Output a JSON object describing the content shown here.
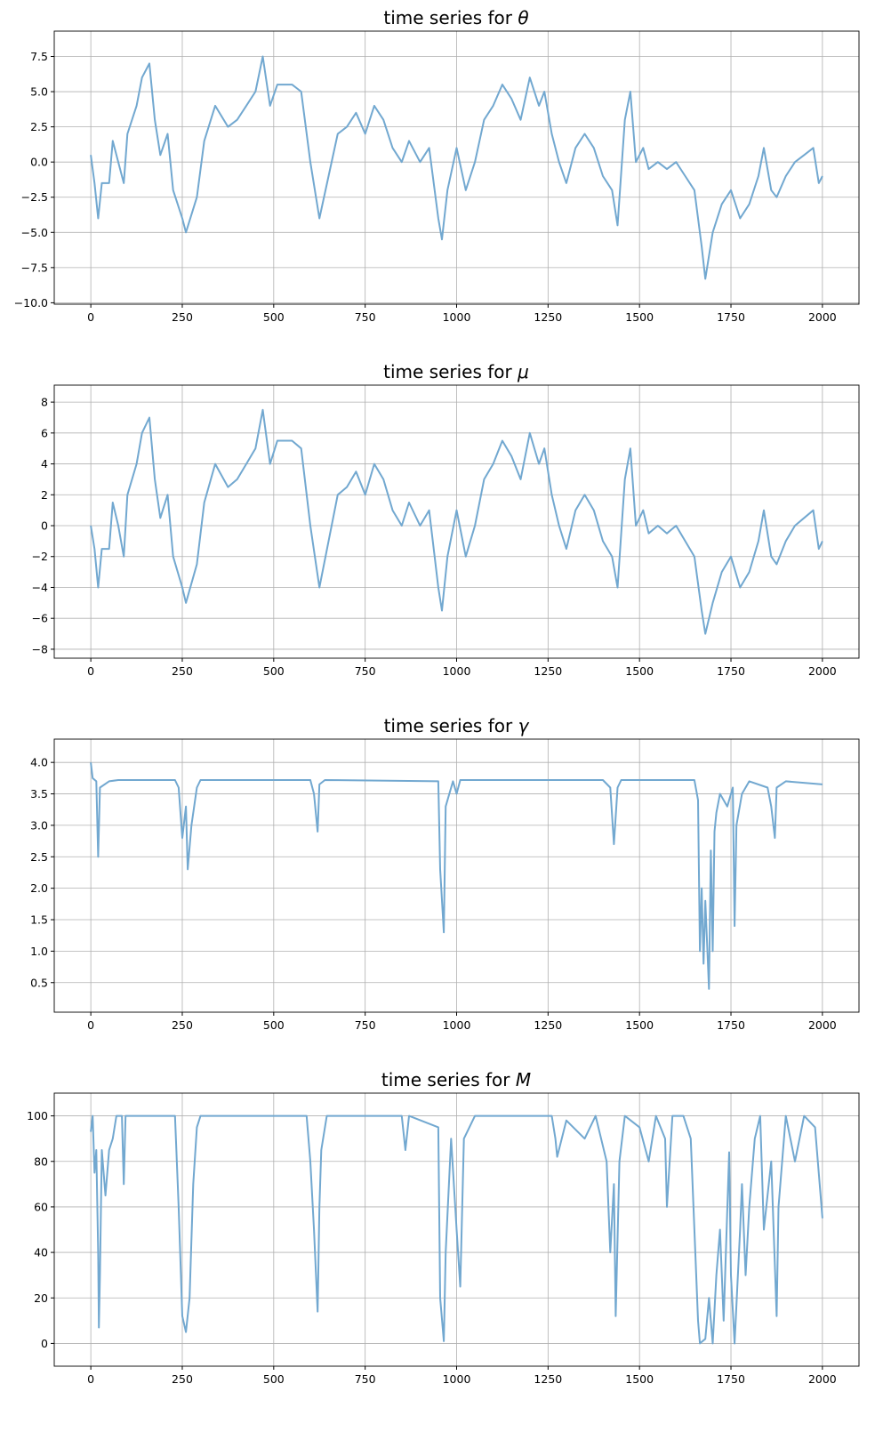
{
  "colors": {
    "series": "#72a8d0",
    "grid": "#b0b0b0"
  },
  "chart_data": [
    {
      "type": "line",
      "title": "time series for ",
      "title_symbol": "θ",
      "xlim": [
        -100,
        2100
      ],
      "ylim": [
        -10.1,
        9.3
      ],
      "grid": true,
      "xticks": [
        0,
        250,
        500,
        750,
        1000,
        1250,
        1500,
        1750,
        2000
      ],
      "xtick_labels": [
        "0",
        "250",
        "500",
        "750",
        "1000",
        "1250",
        "1500",
        "1750",
        "2000"
      ],
      "yticks": [
        -10,
        -7.5,
        -5,
        -2.5,
        0,
        2.5,
        5,
        7.5
      ],
      "ytick_labels": [
        "−10.0",
        "−7.5",
        "−5.0",
        "−2.5",
        "0.0",
        "2.5",
        "5.0",
        "7.5"
      ],
      "x": [
        0,
        10,
        20,
        30,
        50,
        60,
        75,
        90,
        100,
        125,
        140,
        160,
        175,
        190,
        210,
        225,
        250,
        260,
        290,
        310,
        340,
        375,
        400,
        425,
        450,
        470,
        490,
        510,
        550,
        575,
        600,
        625,
        650,
        675,
        700,
        725,
        750,
        775,
        800,
        825,
        850,
        870,
        900,
        925,
        950,
        960,
        975,
        1000,
        1025,
        1050,
        1075,
        1100,
        1125,
        1150,
        1175,
        1200,
        1225,
        1240,
        1260,
        1280,
        1300,
        1325,
        1350,
        1375,
        1400,
        1425,
        1440,
        1460,
        1475,
        1490,
        1510,
        1525,
        1550,
        1575,
        1600,
        1625,
        1650,
        1670,
        1680,
        1700,
        1725,
        1750,
        1775,
        1800,
        1825,
        1840,
        1860,
        1875,
        1900,
        1925,
        1950,
        1975,
        1990,
        2000
      ],
      "y": [
        0.5,
        -1.5,
        -4,
        -1.5,
        -1.5,
        1.5,
        0,
        -1.5,
        2,
        4,
        6,
        7,
        3,
        0.5,
        2,
        -2,
        -4,
        -5,
        -2.5,
        1.5,
        4,
        2.5,
        3,
        4,
        5,
        7.5,
        4,
        5.5,
        5.5,
        5,
        0,
        -4,
        -1,
        2,
        2.5,
        3.5,
        2,
        4,
        3,
        1,
        0,
        1.5,
        0,
        1,
        -4,
        -5.5,
        -2,
        1,
        -2,
        0,
        3,
        4,
        5.5,
        4.5,
        3,
        6,
        4,
        5,
        2,
        0,
        -1.5,
        1,
        2,
        1,
        -1,
        -2,
        -4.5,
        3,
        5,
        0,
        1,
        -0.5,
        0,
        -0.5,
        0,
        -1,
        -2,
        -6,
        -8.3,
        -5,
        -3,
        -2,
        -4,
        -3,
        -1,
        1,
        -2,
        -2.5,
        -1,
        0,
        0.5,
        1,
        -1.5,
        -1
      ]
    },
    {
      "type": "line",
      "title": "time series for ",
      "title_symbol": "μ",
      "xlim": [
        -100,
        2100
      ],
      "ylim": [
        -8.58,
        9.1
      ],
      "grid": true,
      "xticks": [
        0,
        250,
        500,
        750,
        1000,
        1250,
        1500,
        1750,
        2000
      ],
      "xtick_labels": [
        "0",
        "250",
        "500",
        "750",
        "1000",
        "1250",
        "1500",
        "1750",
        "2000"
      ],
      "yticks": [
        -8,
        -6,
        -4,
        -2,
        0,
        2,
        4,
        6,
        8
      ],
      "ytick_labels": [
        "−8",
        "−6",
        "−4",
        "−2",
        "0",
        "2",
        "4",
        "6",
        "8"
      ],
      "x": [
        0,
        10,
        20,
        30,
        50,
        60,
        75,
        90,
        100,
        125,
        140,
        160,
        175,
        190,
        210,
        225,
        250,
        260,
        290,
        310,
        340,
        375,
        400,
        425,
        450,
        470,
        490,
        510,
        550,
        575,
        600,
        625,
        650,
        675,
        700,
        725,
        750,
        775,
        800,
        825,
        850,
        870,
        900,
        925,
        950,
        960,
        975,
        1000,
        1025,
        1050,
        1075,
        1100,
        1125,
        1150,
        1175,
        1200,
        1225,
        1240,
        1260,
        1280,
        1300,
        1325,
        1350,
        1375,
        1400,
        1425,
        1440,
        1460,
        1475,
        1490,
        1510,
        1525,
        1550,
        1575,
        1600,
        1625,
        1650,
        1670,
        1680,
        1700,
        1725,
        1750,
        1775,
        1800,
        1825,
        1840,
        1860,
        1875,
        1900,
        1925,
        1950,
        1975,
        1990,
        2000
      ],
      "y": [
        0,
        -1.5,
        -4,
        -1.5,
        -1.5,
        1.5,
        0,
        -2,
        2,
        4,
        6,
        7,
        3,
        0.5,
        2,
        -2,
        -4,
        -5,
        -2.5,
        1.5,
        4,
        2.5,
        3,
        4,
        5,
        7.5,
        4,
        5.5,
        5.5,
        5,
        0,
        -4,
        -1,
        2,
        2.5,
        3.5,
        2,
        4,
        3,
        1,
        0,
        1.5,
        0,
        1,
        -4,
        -5.5,
        -2,
        1,
        -2,
        0,
        3,
        4,
        5.5,
        4.5,
        3,
        6,
        4,
        5,
        2,
        0,
        -1.5,
        1,
        2,
        1,
        -1,
        -2,
        -4,
        3,
        5,
        0,
        1,
        -0.5,
        0,
        -0.5,
        0,
        -1,
        -2,
        -5.5,
        -7,
        -5,
        -3,
        -2,
        -4,
        -3,
        -1,
        1,
        -2,
        -2.5,
        -1,
        0,
        0.5,
        1,
        -1.5,
        -1
      ]
    },
    {
      "type": "line",
      "title": "time series for ",
      "title_symbol": "γ",
      "xlim": [
        -100,
        2100
      ],
      "ylim": [
        0.03,
        4.37
      ],
      "grid": true,
      "xticks": [
        0,
        250,
        500,
        750,
        1000,
        1250,
        1500,
        1750,
        2000
      ],
      "xtick_labels": [
        "0",
        "250",
        "500",
        "750",
        "1000",
        "1250",
        "1500",
        "1750",
        "2000"
      ],
      "yticks": [
        0.5,
        1.0,
        1.5,
        2.0,
        2.5,
        3.0,
        3.5,
        4.0
      ],
      "ytick_labels": [
        "0.5",
        "1.0",
        "1.5",
        "2.0",
        "2.5",
        "3.0",
        "3.5",
        "4.0"
      ],
      "x": [
        0,
        5,
        15,
        20,
        25,
        50,
        75,
        230,
        240,
        250,
        260,
        265,
        275,
        290,
        300,
        600,
        610,
        620,
        625,
        640,
        950,
        955,
        965,
        970,
        990,
        1000,
        1010,
        1400,
        1420,
        1430,
        1440,
        1450,
        1650,
        1660,
        1665,
        1670,
        1675,
        1680,
        1690,
        1695,
        1700,
        1705,
        1710,
        1720,
        1740,
        1755,
        1760,
        1765,
        1780,
        1800,
        1850,
        1860,
        1870,
        1875,
        1900,
        2000
      ],
      "y": [
        4.0,
        3.75,
        3.7,
        2.5,
        3.6,
        3.7,
        3.72,
        3.72,
        3.6,
        2.8,
        3.3,
        2.3,
        3.0,
        3.6,
        3.72,
        3.72,
        3.5,
        2.9,
        3.65,
        3.72,
        3.7,
        2.3,
        1.3,
        3.3,
        3.7,
        3.5,
        3.72,
        3.72,
        3.6,
        2.7,
        3.6,
        3.72,
        3.72,
        3.4,
        1.0,
        2.0,
        0.8,
        1.8,
        0.4,
        2.6,
        1.0,
        2.9,
        3.2,
        3.5,
        3.3,
        3.6,
        1.4,
        3.0,
        3.5,
        3.7,
        3.6,
        3.3,
        2.8,
        3.6,
        3.7,
        3.65
      ]
    },
    {
      "type": "line",
      "title": "time series for ",
      "title_symbol": "M",
      "xlim": [
        -100,
        2100
      ],
      "ylim": [
        -10,
        110
      ],
      "grid": true,
      "xticks": [
        0,
        250,
        500,
        750,
        1000,
        1250,
        1500,
        1750,
        2000
      ],
      "xtick_labels": [
        "0",
        "250",
        "500",
        "750",
        "1000",
        "1250",
        "1500",
        "1750",
        "2000"
      ],
      "yticks": [
        0,
        20,
        40,
        60,
        80,
        100
      ],
      "ytick_labels": [
        "0",
        "20",
        "40",
        "60",
        "80",
        "100"
      ],
      "x": [
        0,
        5,
        10,
        15,
        20,
        22,
        25,
        30,
        40,
        50,
        60,
        70,
        85,
        90,
        95,
        230,
        240,
        250,
        260,
        270,
        280,
        290,
        300,
        590,
        600,
        610,
        620,
        625,
        630,
        645,
        850,
        860,
        870,
        950,
        955,
        965,
        970,
        985,
        1000,
        1010,
        1020,
        1050,
        1260,
        1270,
        1275,
        1300,
        1350,
        1380,
        1410,
        1420,
        1430,
        1435,
        1445,
        1460,
        1500,
        1525,
        1545,
        1570,
        1575,
        1590,
        1620,
        1640,
        1650,
        1660,
        1665,
        1680,
        1690,
        1700,
        1710,
        1720,
        1730,
        1745,
        1750,
        1760,
        1775,
        1780,
        1790,
        1800,
        1815,
        1830,
        1840,
        1860,
        1875,
        1880,
        1900,
        1925,
        1950,
        1980,
        2000
      ],
      "y": [
        93,
        100,
        75,
        85,
        40,
        7,
        30,
        85,
        65,
        85,
        90,
        100,
        100,
        70,
        100,
        100,
        60,
        12,
        5,
        20,
        70,
        95,
        100,
        100,
        80,
        50,
        14,
        60,
        85,
        100,
        100,
        85,
        100,
        95,
        20,
        1,
        40,
        90,
        50,
        25,
        90,
        100,
        100,
        90,
        82,
        98,
        90,
        100,
        80,
        40,
        70,
        12,
        80,
        100,
        95,
        80,
        100,
        90,
        60,
        100,
        100,
        90,
        50,
        10,
        0,
        2,
        20,
        0,
        30,
        50,
        10,
        84,
        30,
        0,
        50,
        70,
        30,
        60,
        90,
        100,
        50,
        80,
        12,
        60,
        100,
        80,
        100,
        95,
        55
      ]
    }
  ]
}
